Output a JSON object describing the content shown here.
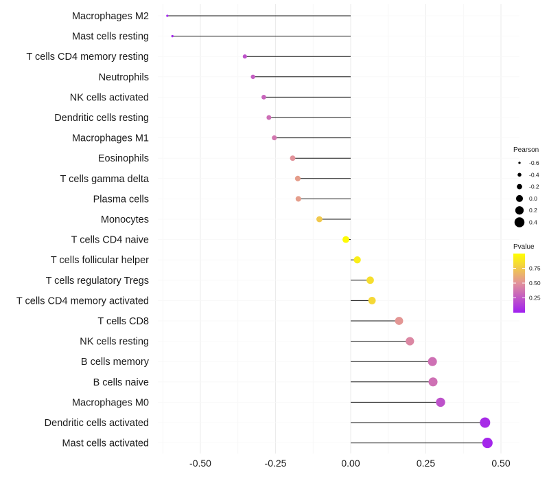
{
  "chart_data": {
    "type": "lollipop",
    "title": "",
    "xlabel": "",
    "ylabel": "",
    "xlim": [
      -0.63,
      0.54
    ],
    "x_ticks": [
      -0.5,
      -0.25,
      0.0,
      0.25,
      0.5
    ],
    "x_tick_labels": [
      "-0.50",
      "-0.25",
      "0.00",
      "0.25",
      "0.50"
    ],
    "baseline": 0,
    "grid": true,
    "categories": [
      "Macrophages M2",
      "Mast cells resting",
      "T cells CD4 memory resting",
      "Neutrophils",
      "NK cells activated",
      "Dendritic cells resting",
      "Macrophages M1",
      "Eosinophils",
      "T cells gamma delta",
      "Plasma cells",
      "Monocytes",
      "T cells CD4 naive",
      "T cells follicular helper",
      "T cells regulatory  Tregs ",
      "T cells CD4 memory activated",
      "T cells CD8",
      "NK cells resting",
      "B cells memory",
      "B cells naive",
      "Macrophages M0",
      "Dendritic cells activated",
      "Mast cells activated"
    ],
    "pearson": [
      -0.61,
      -0.593,
      -0.352,
      -0.325,
      -0.289,
      -0.272,
      -0.254,
      -0.193,
      -0.176,
      -0.174,
      -0.104,
      -0.016,
      0.022,
      0.065,
      0.071,
      0.161,
      0.197,
      0.272,
      0.274,
      0.299,
      0.447,
      0.455
    ],
    "pvalue": [
      0.02,
      0.03,
      0.22,
      0.27,
      0.3,
      0.34,
      0.38,
      0.5,
      0.55,
      0.55,
      0.75,
      0.98,
      0.92,
      0.85,
      0.82,
      0.52,
      0.45,
      0.35,
      0.35,
      0.22,
      0.05,
      0.03
    ],
    "legend_size": {
      "title": "Pearson",
      "entries": [
        {
          "label": "-0.6",
          "value": -0.6
        },
        {
          "label": "-0.4",
          "value": -0.4
        },
        {
          "label": "-0.2",
          "value": -0.2
        },
        {
          "label": "0.0",
          "value": 0.0
        },
        {
          "label": "0.2",
          "value": 0.2
        },
        {
          "label": "0.4",
          "value": 0.4
        }
      ]
    },
    "legend_color": {
      "title": "Pvalue",
      "range": [
        0.0,
        1.0
      ],
      "ticks": [
        0.75,
        0.5,
        0.25
      ],
      "tick_labels": [
        "0.75",
        "0.50",
        "0.25"
      ],
      "low_color": "#a020f0",
      "mid_color": "#e2929a",
      "high_color": "#ffff00"
    },
    "legend_placement": "right"
  }
}
